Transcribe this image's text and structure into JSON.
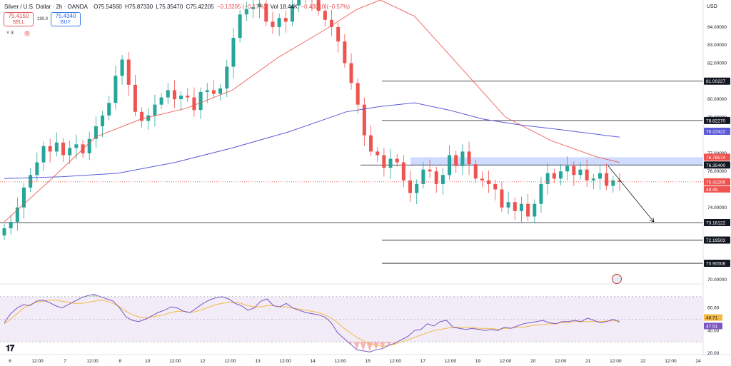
{
  "header": {
    "symbol": "Silver / U.S. Dollar · 2h · OANDA",
    "open": "O75.54560",
    "high": "H75.87330",
    "low": "L75.35470",
    "close": "C75.42205",
    "change": "−0.13205 (−0.17%)",
    "volume": "Vol 18.44K",
    "volume_change": "−0.43010 (−0.57%)"
  },
  "trade": {
    "sell_price": "75.4150",
    "sell_label": "SELL",
    "buy_price": "75.4340",
    "buy_label": "BUY",
    "spread": "190.0",
    "indicators_count": "3"
  },
  "currency": "USD",
  "chart_data": {
    "type": "candlestick",
    "symbol": "XAGUSD",
    "timeframe": "2h",
    "x_tick_labels": [
      "6",
      "12:00",
      "7",
      "12:00",
      "8",
      "10",
      "12:00",
      "12",
      "12:00",
      "13",
      "12:00",
      "14",
      "12:00",
      "15",
      "12:00",
      "17",
      "12:00",
      "19",
      "12:00",
      "20",
      "12:00",
      "21",
      "12:00",
      "22",
      "12:00",
      "24"
    ],
    "y_tick_labels": [
      "84.00000",
      "83.00000",
      "82.00000",
      "80.00000",
      "79.00000",
      "77.00000",
      "76.00000",
      "74.00000",
      "70.00000"
    ],
    "ylim": [
      69.8,
      85.5
    ],
    "candles_close": [
      72.85,
      73.2,
      74.0,
      75.1,
      75.8,
      76.5,
      77.4,
      77.1,
      77.6,
      76.9,
      77.3,
      77.5,
      77.0,
      77.8,
      78.5,
      79.1,
      79.8,
      81.3,
      82.2,
      80.8,
      79.3,
      78.8,
      79.1,
      79.7,
      80.1,
      80.5,
      80.0,
      80.2,
      80.1,
      79.4,
      80.4,
      80.5,
      80.3,
      80.6,
      81.8,
      83.4,
      84.7,
      85.0,
      85.1,
      85.3,
      84.3,
      84.0,
      84.5,
      84.3,
      85.2,
      85.9,
      85.8,
      85.5,
      84.9,
      84.4,
      84.0,
      83.2,
      82.0,
      80.9,
      79.7,
      78.0,
      77.1,
      76.9,
      76.2,
      76.7,
      76.5,
      75.5,
      74.8,
      75.3,
      76.1,
      76.0,
      75.3,
      75.8,
      76.9,
      76.3,
      77.1,
      76.4,
      75.6,
      75.5,
      75.3,
      75.0,
      74.0,
      74.3,
      73.8,
      74.2,
      73.5,
      74.2,
      75.3,
      75.9,
      75.6,
      76.0,
      76.3,
      75.8,
      76.1,
      75.5,
      75.6,
      75.9,
      75.2,
      75.5,
      75.42
    ],
    "levels": [
      81.00227,
      78.8227,
      76.354,
      73.16122,
      72.19503,
      70.90508
    ],
    "level_labels": [
      "81.00227",
      "78.82270",
      "76.35400",
      "73.16122",
      "72.19503",
      "70.90508"
    ],
    "zone": [
      76.354,
      76.78574
    ],
    "zone_label": "76.78574",
    "ma_fast_label": "76.78574",
    "ma_slow_label": "78.22422",
    "ma_slow": [
      [
        0,
        75.6
      ],
      [
        10,
        75.7
      ],
      [
        20,
        75.9
      ],
      [
        30,
        76.5
      ],
      [
        40,
        77.3
      ],
      [
        50,
        78.2
      ],
      [
        55,
        78.75
      ],
      [
        60,
        79.3
      ],
      [
        66,
        79.6
      ],
      [
        72,
        79.8
      ],
      [
        78,
        79.4
      ],
      [
        84,
        78.9
      ],
      [
        90,
        78.6
      ],
      [
        98,
        78.3
      ],
      [
        108,
        77.9
      ]
    ],
    "ma_fast": [
      [
        0,
        73.2
      ],
      [
        8,
        75.5
      ],
      [
        16,
        77.9
      ],
      [
        24,
        78.9
      ],
      [
        32,
        79.5
      ],
      [
        40,
        80.5
      ],
      [
        48,
        82.3
      ],
      [
        56,
        83.8
      ],
      [
        62,
        85.0
      ],
      [
        66,
        85.5
      ],
      [
        72,
        84.6
      ],
      [
        80,
        81.8
      ],
      [
        88,
        79.0
      ],
      [
        96,
        77.7
      ],
      [
        104,
        76.8
      ],
      [
        108,
        76.5
      ]
    ],
    "last_price": 75.42205,
    "last_price_label": "75.42205",
    "countdown": "48:49",
    "forecast_arrow": [
      [
        106,
        76.3
      ],
      [
        114,
        73.2
      ]
    ],
    "rsi": {
      "ylim": [
        20,
        80
      ],
      "y_tick_labels": [
        "60.00",
        "40.00",
        "20.00"
      ],
      "values": [
        47,
        55,
        60,
        63,
        62,
        66,
        67,
        65,
        62,
        60,
        63,
        66,
        69,
        71,
        72,
        70,
        68,
        66,
        60,
        52,
        49,
        48,
        50,
        53,
        56,
        58,
        61,
        60,
        57,
        56,
        60,
        64,
        67,
        69,
        70,
        68,
        64,
        62,
        58,
        60,
        66,
        68,
        62,
        61,
        64,
        60,
        58,
        56,
        55,
        54,
        52,
        47,
        38,
        33,
        28,
        23,
        22,
        21,
        23,
        24,
        27,
        29,
        32,
        35,
        40,
        41,
        46,
        44,
        48,
        49,
        43,
        42,
        41,
        42,
        41,
        40,
        41,
        40,
        43,
        42,
        44,
        46,
        47,
        48,
        49,
        47,
        46,
        48,
        48,
        49,
        48,
        51,
        49,
        47,
        48,
        50,
        47.51
      ],
      "ma": [
        46,
        50,
        55,
        60,
        63,
        65,
        66,
        67,
        67,
        66,
        65,
        64,
        64,
        65,
        66,
        67,
        66,
        64,
        61,
        57,
        54,
        52,
        51,
        52,
        53,
        54,
        56,
        57,
        57,
        56,
        57,
        59,
        61,
        63,
        64,
        65,
        65,
        64,
        62,
        61,
        61,
        62,
        62,
        61,
        61,
        60,
        59,
        58,
        57,
        56,
        54,
        51,
        47,
        42,
        38,
        34,
        31,
        28,
        27,
        26,
        27,
        28,
        30,
        32,
        34,
        36,
        38,
        40,
        41,
        42,
        43,
        43,
        43,
        43,
        42,
        42,
        42,
        41,
        42,
        42,
        43,
        43,
        44,
        45,
        45,
        46,
        46,
        47,
        47,
        48,
        48,
        48,
        48,
        48,
        48.5,
        48.7,
        48.71
      ],
      "rsi_label": "47.51",
      "ma_label": "48.71"
    }
  }
}
